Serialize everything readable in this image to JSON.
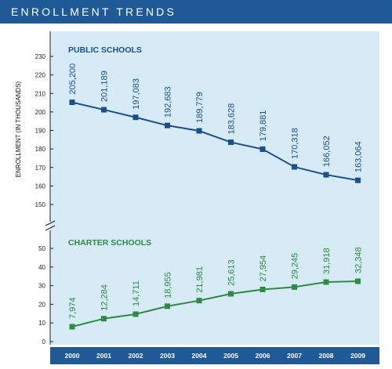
{
  "header": {
    "title": "ENROLLMENT TRENDS"
  },
  "colors": {
    "banner": "#1f5a96",
    "panel": "#d6ebf6",
    "public": "#1b4f8c",
    "charter": "#2f8a43",
    "axis_bar": "#1f5a96"
  },
  "chart_data": [
    {
      "type": "line",
      "title": "PUBLIC SCHOOLS",
      "ylabel": "ENROLLMENT (IN THOUSANDS)",
      "x": [
        "2000",
        "2001",
        "2002",
        "2003",
        "2004",
        "2005",
        "2006",
        "2007",
        "2008",
        "2009"
      ],
      "values": [
        205200,
        201189,
        197083,
        192683,
        189779,
        183628,
        179881,
        170318,
        166052,
        163064
      ],
      "data_labels": [
        "205,200",
        "201,189",
        "197,083",
        "192,683",
        "189,779",
        "183,628",
        "179,881",
        "170,318",
        "166,052",
        "163,064"
      ],
      "ylim": [
        150,
        230
      ],
      "yticks": [
        150,
        160,
        170,
        180,
        190,
        200,
        210,
        220,
        230
      ],
      "grid": false
    },
    {
      "type": "line",
      "title": "CHARTER SCHOOLS",
      "x": [
        "2000",
        "2001",
        "2002",
        "2003",
        "2004",
        "2005",
        "2006",
        "2007",
        "2008",
        "2009"
      ],
      "values": [
        7974,
        12284,
        14711,
        18955,
        21981,
        25613,
        27954,
        29245,
        31918,
        32348
      ],
      "data_labels": [
        "7,974",
        "12,284",
        "14,711",
        "18,955",
        "21,981",
        "25,613",
        "27,954",
        "29,245",
        "31,918",
        "32,348"
      ],
      "ylim": [
        0,
        50
      ],
      "yticks": [
        0,
        10,
        20,
        30,
        40,
        50
      ],
      "grid": false
    }
  ]
}
